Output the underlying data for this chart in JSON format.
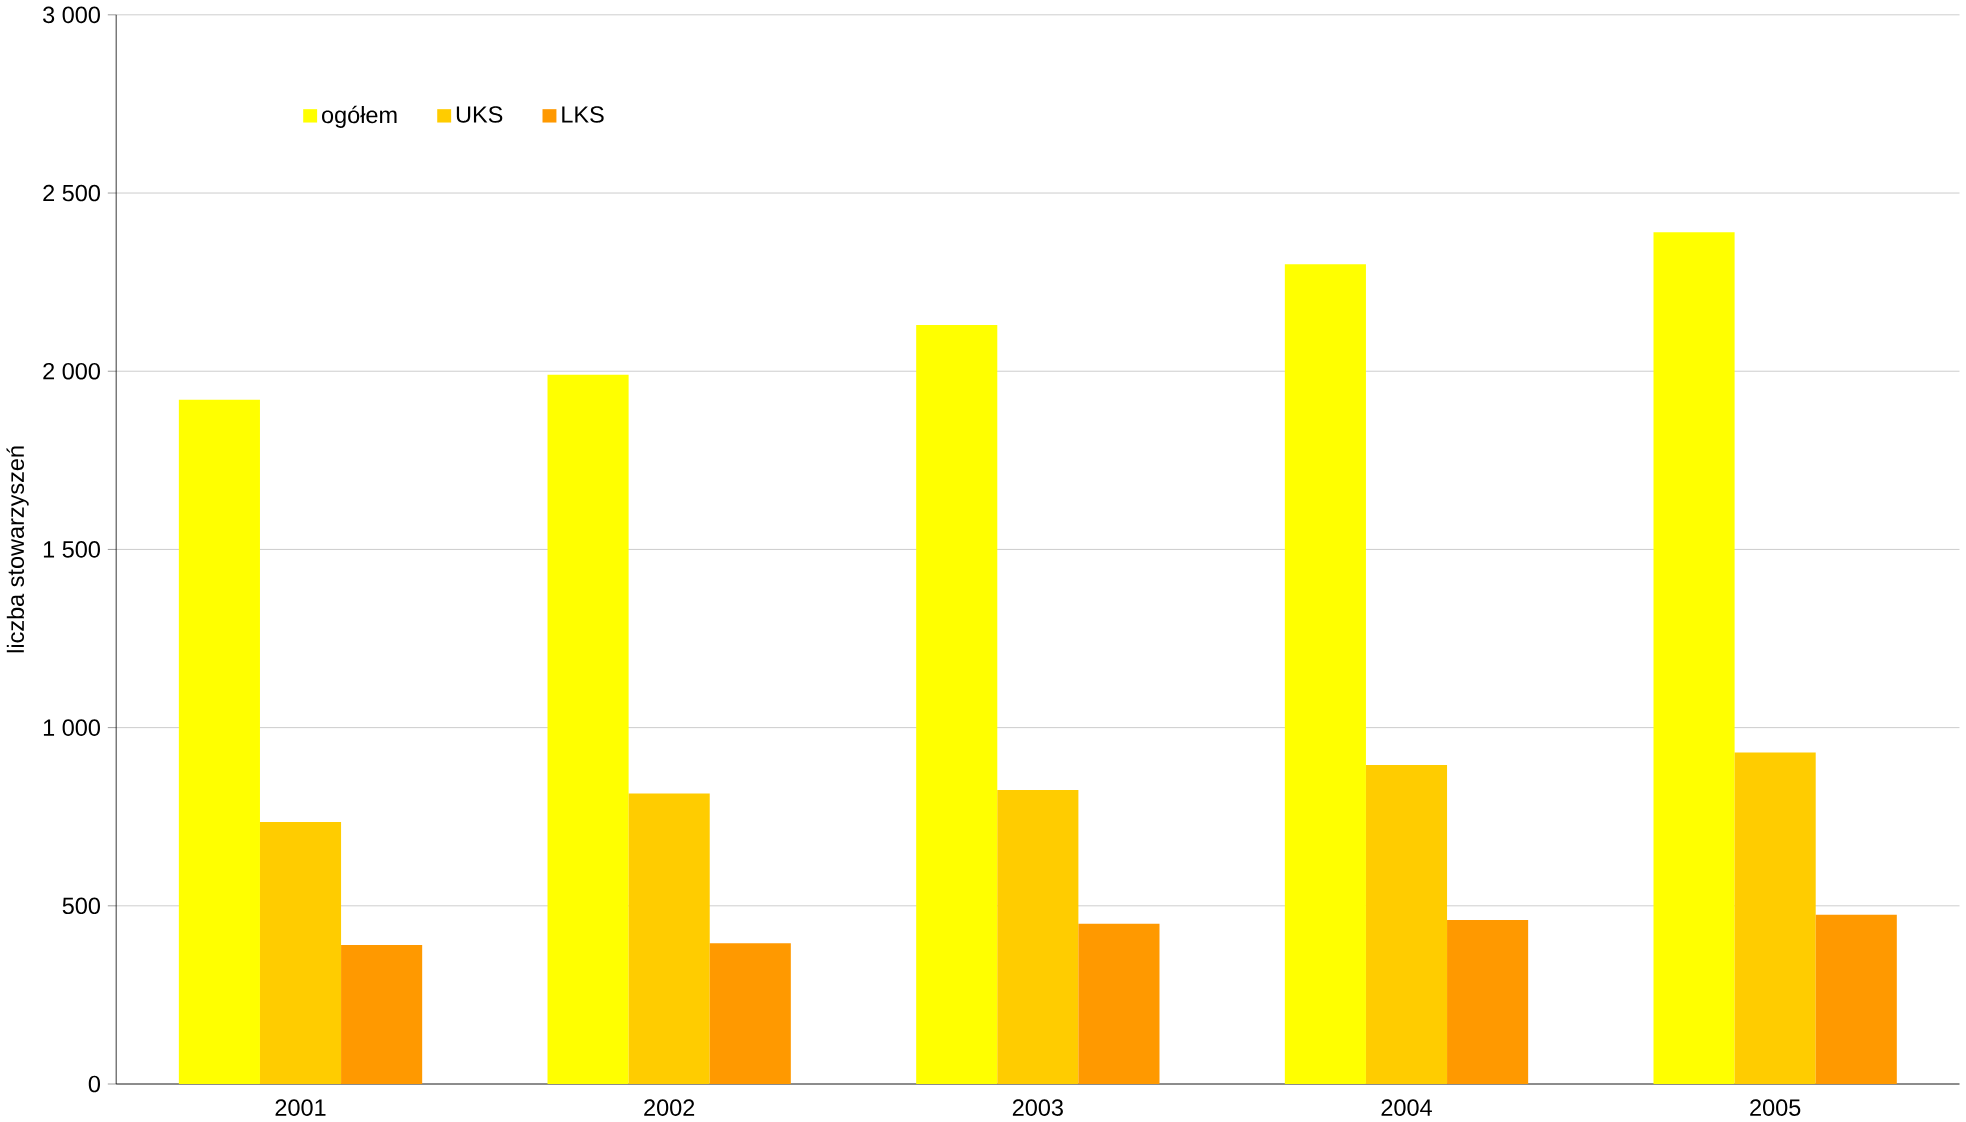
{
  "chart_data": {
    "type": "bar",
    "ylabel": "liczba stowarzyszeń",
    "categories": [
      "2001",
      "2002",
      "2003",
      "2004",
      "2005"
    ],
    "series": [
      {
        "name": "ogółem",
        "color": "#ffff00",
        "values": [
          1920,
          1990,
          2130,
          2300,
          2390
        ]
      },
      {
        "name": "UKS",
        "color": "#ffcc00",
        "values": [
          735,
          815,
          825,
          895,
          930
        ]
      },
      {
        "name": "LKS",
        "color": "#ff9900",
        "values": [
          390,
          395,
          450,
          460,
          475
        ]
      }
    ],
    "ylim": [
      0,
      3000
    ],
    "yticks": [
      0,
      500,
      {
        "value": 1000,
        "label": "1 000"
      },
      {
        "value": 1500,
        "label": "1 500"
      },
      {
        "value": 2000,
        "label": "2 000"
      },
      {
        "value": 2500,
        "label": "2 500"
      },
      {
        "value": 3000,
        "label": "3 000"
      }
    ],
    "grid": "y",
    "legend": "top left"
  }
}
